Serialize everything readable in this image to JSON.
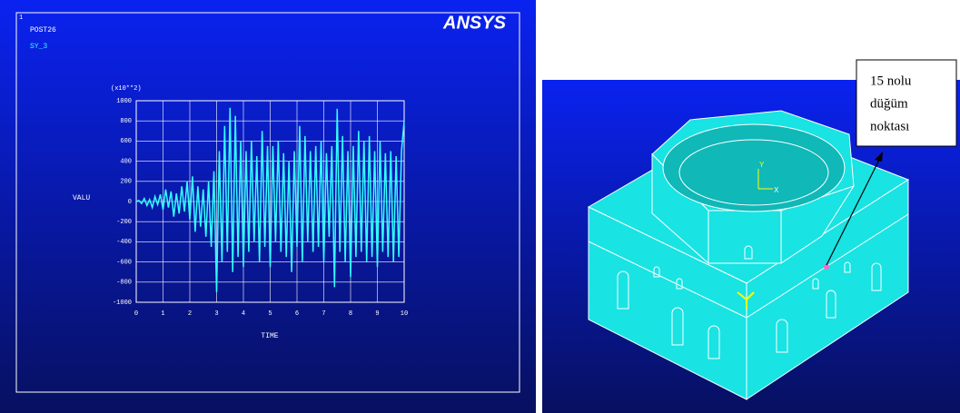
{
  "chart_data": {
    "type": "line",
    "window_number": "1",
    "title": "POST26",
    "subtitle": "SY_3",
    "logo": "ANSYS",
    "y_multiplier": "(x10**2)",
    "y_label": "VALU",
    "x_label": "TIME",
    "x": [
      0,
      0.1,
      0.2,
      0.3,
      0.4,
      0.5,
      0.6,
      0.7,
      0.8,
      0.9,
      1,
      1.1,
      1.2,
      1.3,
      1.4,
      1.5,
      1.6,
      1.7,
      1.8,
      1.9,
      2,
      2.1,
      2.2,
      2.3,
      2.4,
      2.5,
      2.6,
      2.7,
      2.8,
      2.9,
      3,
      3.1,
      3.2,
      3.3,
      3.4,
      3.5,
      3.6,
      3.7,
      3.8,
      3.9,
      4,
      4.1,
      4.2,
      4.3,
      4.4,
      4.5,
      4.6,
      4.7,
      4.8,
      4.9,
      5,
      5.1,
      5.2,
      5.3,
      5.4,
      5.5,
      5.6,
      5.7,
      5.8,
      5.9,
      6,
      6.1,
      6.2,
      6.3,
      6.4,
      6.5,
      6.6,
      6.7,
      6.8,
      6.9,
      7,
      7.1,
      7.2,
      7.3,
      7.4,
      7.5,
      7.6,
      7.7,
      7.8,
      7.9,
      8,
      8.1,
      8.2,
      8.3,
      8.4,
      8.5,
      8.6,
      8.7,
      8.8,
      8.9,
      9,
      9.1,
      9.2,
      9.3,
      9.4,
      9.5,
      9.6,
      9.7,
      9.8,
      9.9,
      10
    ],
    "series": [
      {
        "name": "SY_3",
        "color": "#33ffff",
        "values": [
          0,
          10,
          -20,
          30,
          -40,
          20,
          -60,
          50,
          -30,
          70,
          -80,
          120,
          -60,
          100,
          -150,
          80,
          -120,
          150,
          -100,
          200,
          -180,
          250,
          -300,
          150,
          -250,
          120,
          -350,
          200,
          -450,
          300,
          -900,
          500,
          -600,
          750,
          -500,
          930,
          -700,
          850,
          -550,
          600,
          -650,
          500,
          -500,
          600,
          -400,
          450,
          -600,
          700,
          -450,
          550,
          -650,
          550,
          -400,
          600,
          -500,
          480,
          -550,
          400,
          -700,
          500,
          -450,
          750,
          -600,
          650,
          -400,
          500,
          -500,
          550,
          -450,
          600,
          -600,
          480,
          -350,
          550,
          -850,
          920,
          -500,
          650,
          -600,
          500,
          -750,
          550,
          -550,
          700,
          -500,
          600,
          -600,
          650,
          -550,
          500,
          -650,
          600,
          -500,
          480,
          -550,
          500,
          -600,
          450,
          -550,
          500,
          800
        ]
      }
    ],
    "xlim": [
      0,
      10
    ],
    "xticks": [
      0,
      1,
      2,
      3,
      4,
      5,
      6,
      7,
      8,
      9,
      10
    ],
    "ylim": [
      -1000,
      1000
    ],
    "yticks": [
      -1000,
      -800,
      -600,
      -400,
      -200,
      0,
      200,
      400,
      600,
      800,
      1000
    ],
    "grid": true
  },
  "model_view": {
    "annotation_lines": [
      "15 nolu",
      "düğüm",
      "noktası"
    ],
    "axis_labels": [
      "Y",
      "X"
    ]
  }
}
